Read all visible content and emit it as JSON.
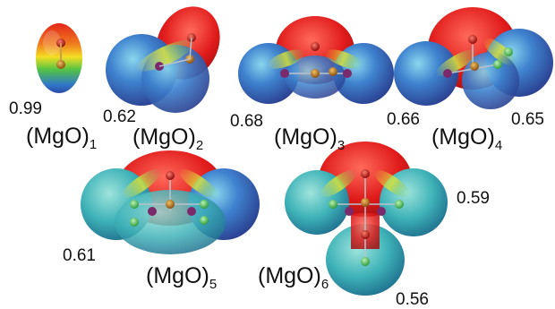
{
  "clusters": [
    {
      "id": 1,
      "formula": "(MgO)",
      "n": "1",
      "charges": [
        "0.99"
      ]
    },
    {
      "id": 2,
      "formula": "(MgO)",
      "n": "2",
      "charges": [
        "0.62"
      ]
    },
    {
      "id": 3,
      "formula": "(MgO)",
      "n": "3",
      "charges": [
        "0.68"
      ]
    },
    {
      "id": 4,
      "formula": "(MgO)",
      "n": "4",
      "charges": [
        "0.66",
        "0.65"
      ]
    },
    {
      "id": 5,
      "formula": "(MgO)",
      "n": "5",
      "charges": [
        "0.61"
      ]
    },
    {
      "id": 6,
      "formula": "(MgO)",
      "n": "6",
      "charges": [
        "0.59",
        "0.56"
      ]
    }
  ],
  "colors": {
    "negative": "#e02020",
    "neutral": "#3bbf5a",
    "positive": "#2f63c8",
    "mg_atom": "#c07a1c",
    "o_atom": "#d42020",
    "bond": "#b9c2cc"
  }
}
